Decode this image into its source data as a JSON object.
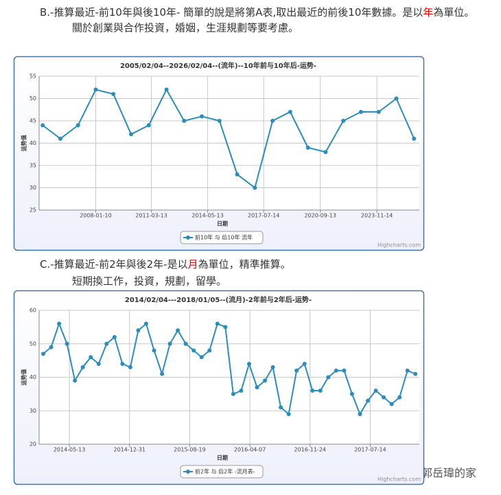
{
  "texts": {
    "b_line": [
      "B.-推算最近-前10年與後10年- 簡單的說是將第A表,取出最近的前後10年數據。是以",
      "年",
      "為單位。"
    ],
    "b_note": "關於創業與合作投資，婚姻，生涯規劃等要考慮。",
    "c_line": [
      "C.-推算最近-前2年與後2年-是以",
      "月",
      "為單位，精準推算。"
    ],
    "c_note": "短期換工作，投資，規劃，留學。",
    "watermark": "郭岳瑋的家",
    "highlight_color": "#e00000"
  },
  "chart_data": [
    {
      "type": "line",
      "title": "2005/02/04--2026/02/04--(流年)--10年前与10年后-运势-",
      "y_label": "运势值",
      "x_label": "日期",
      "credit": "Highcharts.com",
      "legend": "bottom",
      "grid": true,
      "series": [
        {
          "name": "前10年 与 后10年 流年",
          "color": "#2a8dbb",
          "values": [
            44,
            41,
            44,
            52,
            51,
            42,
            44,
            52,
            45,
            46,
            45,
            33,
            30,
            45,
            47,
            39,
            38,
            45,
            47,
            47,
            50,
            41
          ]
        }
      ],
      "xlim": [
        -0.2,
        21.3
      ],
      "xticks": [
        {
          "value": 3.0,
          "label": "2008-01-10"
        },
        {
          "value": 6.15,
          "label": "2011-03-13"
        },
        {
          "value": 9.33,
          "label": "2014-05-13"
        },
        {
          "value": 12.5,
          "label": "2017-07-14"
        },
        {
          "value": 15.7,
          "label": "2020-09-13"
        },
        {
          "value": 18.9,
          "label": "2023-11-14"
        }
      ],
      "ylim": [
        25,
        55
      ],
      "yticks": [
        25,
        30,
        35,
        40,
        45,
        50,
        55
      ]
    },
    {
      "type": "line",
      "title": "2014/02/04---2018/01/05--(流月)-2年前与2年后-运势-",
      "y_label": "运势值",
      "x_label": "日期",
      "credit": "Highcharts.com",
      "legend": "bottom",
      "grid": true,
      "series": [
        {
          "name": "前2年 与 后2年 -流月表-",
          "color": "#2a8dbb",
          "values": [
            47,
            49,
            56,
            50,
            39,
            43,
            46,
            44,
            50,
            52,
            44,
            43,
            54,
            56,
            48,
            41,
            50,
            54,
            50,
            48,
            46,
            48,
            56,
            55,
            35,
            36,
            44,
            37,
            39,
            43,
            31,
            29,
            42,
            44,
            36,
            36,
            40,
            42,
            42,
            35,
            29,
            33,
            36,
            34,
            32,
            34,
            42,
            41
          ]
        }
      ],
      "xlim": [
        -0.52,
        47.5
      ],
      "xticks": [
        {
          "value": 3.3,
          "label": "2014-05-13"
        },
        {
          "value": 10.9,
          "label": "2014-12-31"
        },
        {
          "value": 18.5,
          "label": "2015-08-19"
        },
        {
          "value": 26.1,
          "label": "2016-04-07"
        },
        {
          "value": 33.7,
          "label": "2016-11-24"
        },
        {
          "value": 41.3,
          "label": "2017-07-14"
        }
      ],
      "ylim": [
        20,
        60
      ],
      "yticks": [
        20,
        30,
        40,
        50,
        60
      ]
    }
  ]
}
